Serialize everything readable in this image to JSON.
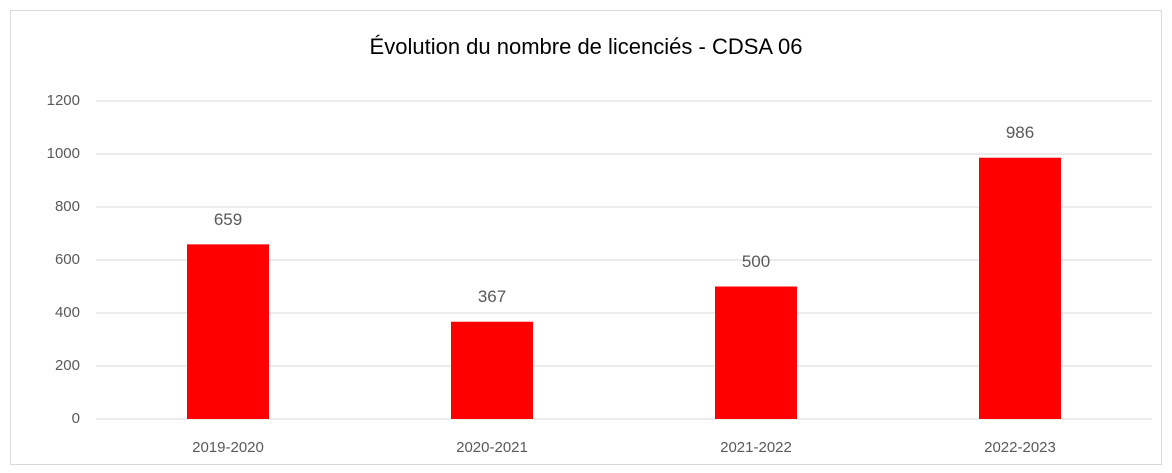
{
  "chart_data": {
    "type": "bar",
    "title": "Évolution du nombre de licenciés - CDSA 06",
    "categories": [
      "2019-2020",
      "2020-2021",
      "2021-2022",
      "2022-2023"
    ],
    "values": [
      659,
      367,
      500,
      986
    ],
    "color": "#ff0000",
    "ylim": [
      0,
      1200
    ],
    "yticks": [
      0,
      200,
      400,
      600,
      800,
      1000,
      1200
    ],
    "grid": true
  }
}
